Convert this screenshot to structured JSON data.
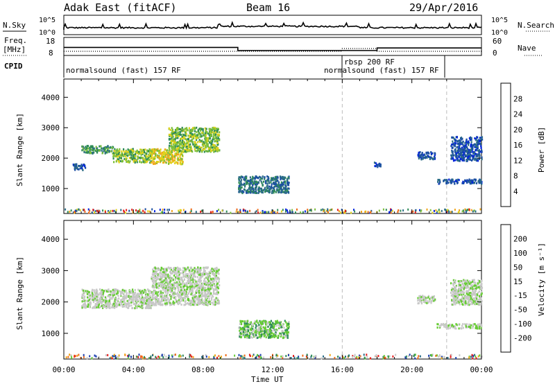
{
  "chart_data": {
    "type": "scatter",
    "title_left": "Adak East (fitACF)",
    "title_center": "Beam 16",
    "title_right": "29/Apr/2016",
    "xlabel": "Time UT",
    "x_ticks": [
      "00:00",
      "04:00",
      "08:00",
      "12:00",
      "16:00",
      "20:00",
      "00:00"
    ],
    "x_range_hours": [
      0,
      24
    ],
    "dashed_marker_hours": [
      16,
      22
    ],
    "top_panels": {
      "nsky": {
        "label": "N.Sky",
        "tick_labels": [
          "10^5",
          "10^0"
        ],
        "right_label": "N.Search"
      },
      "freq": {
        "label_line1": "Freq.",
        "label_line2": "[MHz]",
        "left_ticks": [
          "18",
          "8"
        ],
        "right_ticks": [
          "60",
          "0"
        ],
        "right_label": "Nave"
      },
      "cpid": {
        "label": "CPID",
        "segments": [
          {
            "text": "normalsound (fast) 157 RF",
            "start_hour": 0
          },
          {
            "text": "rbsp 200 RF",
            "start_hour": 16
          },
          {
            "text": "normalsound (fast) 157 RF",
            "start_hour": 16
          }
        ]
      }
    },
    "panels": [
      {
        "name": "power",
        "ylabel": "Slant Range [km]",
        "y_ticks": [
          "4000",
          "3000",
          "2000",
          "1000"
        ],
        "y_range_km": [
          180,
          4600
        ],
        "colorbar_label": "Power [dB]",
        "colorbar_ticks": [
          "28",
          "24",
          "20",
          "16",
          "12",
          "8",
          "4"
        ],
        "colors": [
          "#0022dd",
          "#1b4fa3",
          "#2c6d86",
          "#2e8b57",
          "#7cbf3a",
          "#e0d21a",
          "#f2a51a",
          "#ef6a18",
          "#e51a1a"
        ],
        "echo_regions": [
          {
            "t0": 1.0,
            "t1": 2.8,
            "r0": 2150,
            "r1": 2400,
            "level": 3
          },
          {
            "t0": 2.8,
            "t1": 5.0,
            "r0": 1850,
            "r1": 2300,
            "level": 4
          },
          {
            "t0": 5.0,
            "t1": 6.8,
            "r0": 1800,
            "r1": 2300,
            "level": 5
          },
          {
            "t0": 6.0,
            "t1": 8.9,
            "r0": 2200,
            "r1": 3000,
            "level": 4
          },
          {
            "t0": 10.0,
            "t1": 12.9,
            "r0": 850,
            "r1": 1400,
            "level": 2
          },
          {
            "t0": 0.5,
            "t1": 1.2,
            "r0": 1600,
            "r1": 1800,
            "level": 1
          },
          {
            "t0": 20.3,
            "t1": 21.3,
            "r0": 1950,
            "r1": 2200,
            "level": 1
          },
          {
            "t0": 22.2,
            "t1": 24.0,
            "r0": 1900,
            "r1": 2700,
            "level": 1
          },
          {
            "t0": 21.4,
            "t1": 24.0,
            "r0": 1150,
            "r1": 1300,
            "level": 1
          },
          {
            "t0": 17.8,
            "t1": 18.2,
            "r0": 1700,
            "r1": 1850,
            "level": 1
          }
        ]
      },
      {
        "name": "velocity",
        "ylabel": "Slant Range [km]",
        "y_ticks": [
          "4000",
          "3000",
          "2000",
          "1000"
        ],
        "y_range_km": [
          180,
          4600
        ],
        "colorbar_label": "Velocity [m s⁻¹]",
        "colorbar_ticks": [
          "200",
          "100",
          "50",
          "15",
          "-15",
          "-50",
          "-100",
          "-200"
        ],
        "colors": [
          "#1b3fb0",
          "#2c6d86",
          "#2e8b57",
          "#66cc33",
          "#c8c8c8",
          "#c8c8c8",
          "#f2a51a",
          "#ef6a18",
          "#e51a1a"
        ],
        "echo_regions": [
          {
            "t0": 1.0,
            "t1": 5.0,
            "r0": 1800,
            "r1": 2400,
            "level": 4
          },
          {
            "t0": 5.0,
            "t1": 8.9,
            "r0": 1900,
            "r1": 3100,
            "level": 4
          },
          {
            "t0": 10.0,
            "t1": 12.9,
            "r0": 850,
            "r1": 1400,
            "level": 3
          },
          {
            "t0": 20.3,
            "t1": 21.3,
            "r0": 1950,
            "r1": 2200,
            "level": 4
          },
          {
            "t0": 22.2,
            "t1": 24.0,
            "r0": 1900,
            "r1": 2700,
            "level": 4
          },
          {
            "t0": 21.4,
            "t1": 24.0,
            "r0": 1150,
            "r1": 1300,
            "level": 4
          }
        ]
      }
    ]
  }
}
